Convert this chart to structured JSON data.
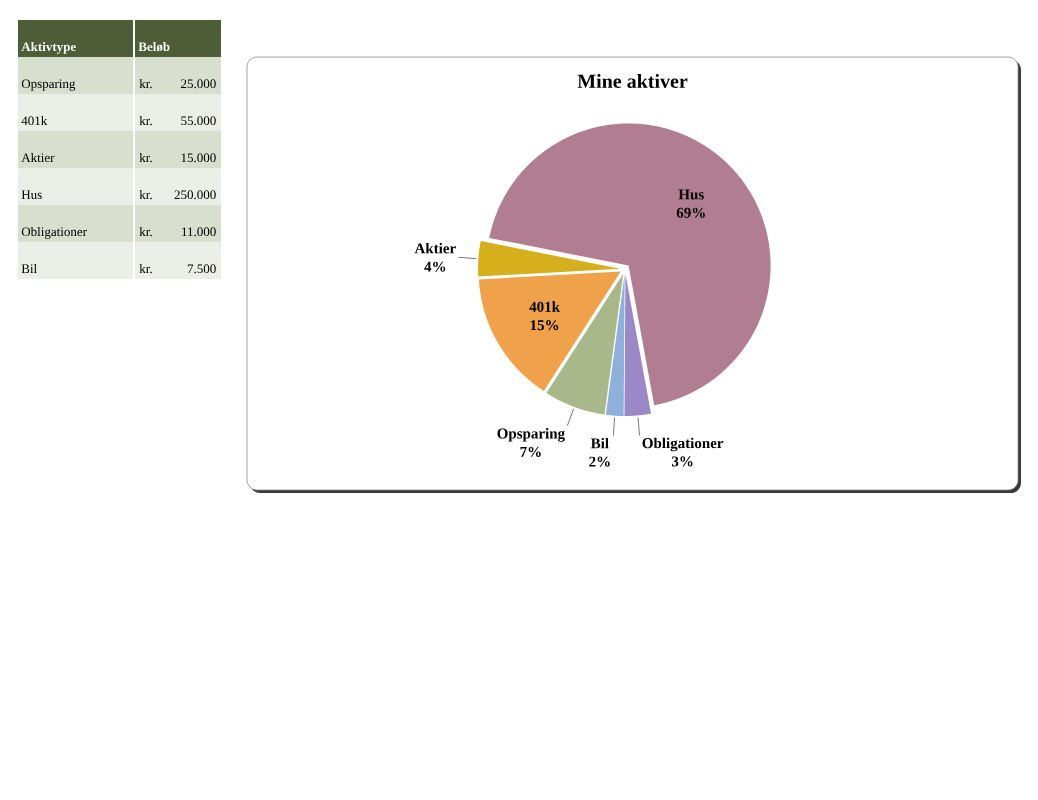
{
  "chart_data": [
    {
      "type": "other",
      "annotations": [
        "Aktivtype",
        "Beløb"
      ],
      "categories": [
        "Opsparing",
        "401k",
        "Aktier",
        "Hus",
        "Obligationer",
        "Bil"
      ],
      "value_labels": [
        "kr. 25.000",
        "kr. 55.000",
        "kr. 15.000",
        "kr. 250.000",
        "kr. 11.000",
        "kr. 7.500"
      ]
    },
    {
      "type": "pie",
      "title": "Mine aktiver",
      "categories": [
        "Opsparing",
        "401k",
        "Aktier",
        "Hus",
        "Obligationer",
        "Bil"
      ],
      "values": [
        7,
        15,
        4,
        69,
        3,
        2
      ],
      "value_labels": [
        "7%",
        "15%",
        "4%",
        "69%",
        "3%",
        "2%"
      ],
      "colors": [
        "#a8b88a",
        "#f0a24a",
        "#d6b01c",
        "#b07e90",
        "#9b88c6",
        "#8fb0da"
      ]
    }
  ]
}
